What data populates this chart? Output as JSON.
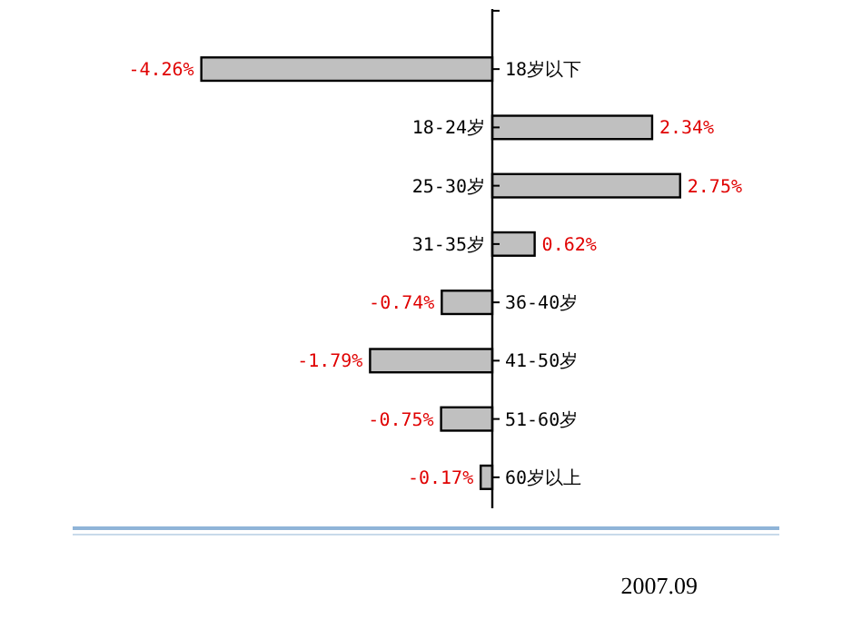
{
  "chart_data": {
    "type": "bar",
    "orientation": "horizontal",
    "categories": [
      "18岁以下",
      "18-24岁",
      "25-30岁",
      "31-35岁",
      "36-40岁",
      "41-50岁",
      "51-60岁",
      "60岁以上"
    ],
    "series": [
      {
        "color": "#c0c0c0",
        "values": [
          -4.26,
          2.34,
          2.75,
          0.62,
          -0.74,
          -1.79,
          -0.75,
          -0.17
        ],
        "value_labels": [
          "-4.26%",
          "2.34%",
          "2.75%",
          "0.62%",
          "-0.74%",
          "-1.79%",
          "-0.75%",
          "-0.17%"
        ]
      }
    ],
    "annotations": [
      "2007.09"
    ]
  }
}
